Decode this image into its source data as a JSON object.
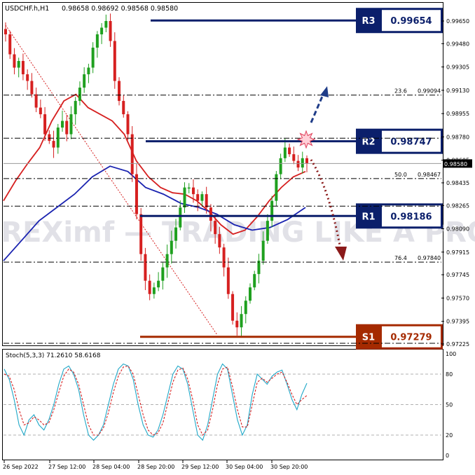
{
  "header": {
    "symbol": "USDCHF.h,H1",
    "ohlc": "0.98658 0.98692 0.98568 0.98580"
  },
  "levels": [
    {
      "key": "R3",
      "label": "R3",
      "value_text": "0.99654",
      "value": 0.99654
    },
    {
      "key": "R2",
      "label": "R2",
      "value_text": "0.98747",
      "value": 0.98747
    },
    {
      "key": "R1",
      "label": "R1",
      "value_text": "0.98186",
      "value": 0.98186
    },
    {
      "key": "S1",
      "label": "S1",
      "value_text": "0.97279",
      "value": 0.97279
    }
  ],
  "fibonacci": [
    {
      "level": "23.6",
      "value_text": "0.99094",
      "value": 0.99094
    },
    {
      "level": "50.0",
      "value_text": "0.98467",
      "value": 0.98467
    },
    {
      "level": "76.4",
      "value_text": "0.97840",
      "value": 0.9784
    }
  ],
  "current_price": {
    "value_text": "0.98580",
    "value": 0.9858
  },
  "watermark": "FOREXimf — TRADING LIKE A PRO",
  "stoch": {
    "label": "Stoch(5,3,3) 71.2610 58.6168",
    "ticks": [
      "100",
      "80",
      "50",
      "20",
      "0"
    ]
  },
  "colors": {
    "resistance": "#0b1f6b",
    "support": "#a52a00",
    "ma_fast": "#d62020",
    "ma_slow": "#1a23b0",
    "bull": "#1fa01f",
    "bear": "#d62020",
    "stoch_main": "#20a8c8",
    "stoch_signal": "#d62020",
    "arrow_up": "#1f3c88",
    "arrow_down": "#8b1a1a"
  },
  "chart_data": [
    {
      "type": "candlestick",
      "title": "USDCHF.h,H1",
      "ylim": [
        0.97225,
        0.99725
      ],
      "y_ticks": [
        "0.99650",
        "0.99480",
        "0.99305",
        "0.99130",
        "0.98955",
        "0.98780",
        "0.98605",
        "0.98435",
        "0.98265",
        "0.98090",
        "0.97915",
        "0.97745",
        "0.97570",
        "0.97395",
        "0.97225"
      ],
      "x_tick_labels": [
        "26 Sep 2022",
        "27 Sep 12:00",
        "28 Sep 04:00",
        "28 Sep 20:00",
        "29 Sep 12:00",
        "30 Sep 04:00",
        "30 Sep 20:00"
      ],
      "series": [
        {
          "name": "price",
          "values": [
            0.9955,
            0.994,
            0.993,
            0.9935,
            0.9925,
            0.992,
            0.991,
            0.99,
            0.9895,
            0.988,
            0.9875,
            0.987,
            0.9885,
            0.989,
            0.988,
            0.9895,
            0.9905,
            0.9915,
            0.9925,
            0.993,
            0.9945,
            0.9955,
            0.996,
            0.9965,
            0.995,
            0.992,
            0.9905,
            0.9895,
            0.988,
            0.985,
            0.982,
            0.979,
            0.977,
            0.976,
            0.9765,
            0.977,
            0.978,
            0.979,
            0.98,
            0.981,
            0.9825,
            0.984,
            0.984,
            0.9835,
            0.983,
            0.9835,
            0.9825,
            0.9815,
            0.9805,
            0.9795,
            0.978,
            0.976,
            0.974,
            0.9735,
            0.9745,
            0.9755,
            0.9765,
            0.9775,
            0.9785,
            0.98,
            0.9815,
            0.983,
            0.985,
            0.9862,
            0.987,
            0.9865,
            0.986,
            0.9855,
            0.9862,
            0.9858
          ]
        },
        {
          "name": "MA fast",
          "values": [
            0.983,
            0.9845,
            0.9858,
            0.987,
            0.989,
            0.9905,
            0.991,
            0.99,
            0.9895,
            0.989,
            0.988,
            0.986,
            0.9848,
            0.984,
            0.9836,
            0.9835,
            0.983,
            0.9822,
            0.9812,
            0.9805,
            0.9808,
            0.9818,
            0.983,
            0.984,
            0.9848,
            0.9852
          ]
        },
        {
          "name": "MA slow",
          "values": [
            0.9785,
            0.98,
            0.9815,
            0.9825,
            0.9835,
            0.9848,
            0.9856,
            0.9852,
            0.984,
            0.9835,
            0.9828,
            0.9825,
            0.982,
            0.9812,
            0.9808,
            0.981,
            0.9816,
            0.9825
          ]
        }
      ]
    },
    {
      "type": "line",
      "title": "Stoch(5,3,3) 71.2610 58.6168",
      "ylim": [
        0,
        100
      ],
      "series": [
        {
          "name": "main",
          "values": [
            85,
            75,
            55,
            30,
            20,
            35,
            40,
            30,
            25,
            35,
            50,
            70,
            85,
            88,
            80,
            65,
            40,
            20,
            15,
            20,
            30,
            50,
            70,
            85,
            90,
            88,
            75,
            50,
            30,
            20,
            18,
            25,
            40,
            60,
            80,
            88,
            85,
            70,
            45,
            20,
            15,
            30,
            55,
            80,
            90,
            85,
            60,
            35,
            20,
            30,
            60,
            80,
            75,
            70,
            78,
            82,
            84,
            70,
            55,
            45,
            60,
            71
          ]
        },
        {
          "name": "signal",
          "values": [
            80,
            78,
            65,
            45,
            30,
            32,
            38,
            35,
            30,
            32,
            45,
            62,
            78,
            85,
            82,
            70,
            50,
            30,
            20,
            20,
            27,
            42,
            62,
            78,
            87,
            88,
            80,
            60,
            40,
            25,
            20,
            22,
            32,
            52,
            72,
            84,
            86,
            75,
            55,
            30,
            20,
            25,
            45,
            70,
            85,
            87,
            68,
            45,
            28,
            28,
            50,
            72,
            76,
            72,
            76,
            80,
            82,
            72,
            60,
            50,
            55,
            59
          ]
        }
      ]
    }
  ]
}
